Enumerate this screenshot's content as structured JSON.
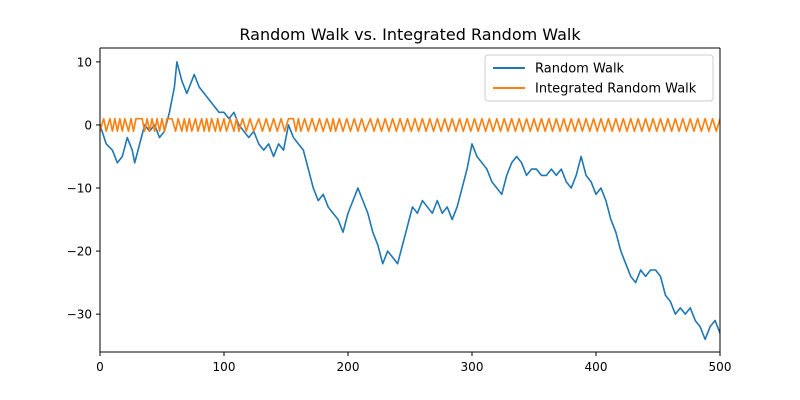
{
  "chart_data": {
    "type": "line",
    "title": "Random Walk vs. Integrated Random Walk",
    "xlabel": "",
    "ylabel": "",
    "xlim": [
      0,
      500
    ],
    "ylim": [
      -36,
      12.2
    ],
    "xticks": [
      0,
      100,
      200,
      300,
      400,
      500
    ],
    "yticks": [
      10,
      0,
      -10,
      -20,
      -30
    ],
    "xtick_labels": [
      "0",
      "100",
      "200",
      "300",
      "400",
      "500"
    ],
    "ytick_labels": [
      "10",
      "0",
      "−10",
      "−20",
      "−30"
    ],
    "grid": false,
    "legend": {
      "position": "top-right"
    },
    "series": [
      {
        "name": "Random Walk",
        "color": "#1f77b4",
        "points": [
          [
            0,
            0
          ],
          [
            5,
            -3
          ],
          [
            10,
            -4
          ],
          [
            14,
            -6
          ],
          [
            18,
            -5
          ],
          [
            22,
            -2
          ],
          [
            26,
            -4
          ],
          [
            28,
            -6
          ],
          [
            32,
            -3
          ],
          [
            36,
            0
          ],
          [
            40,
            -1
          ],
          [
            44,
            0
          ],
          [
            48,
            -2
          ],
          [
            52,
            -1
          ],
          [
            56,
            2
          ],
          [
            60,
            6
          ],
          [
            62,
            10
          ],
          [
            66,
            7
          ],
          [
            70,
            5
          ],
          [
            74,
            7
          ],
          [
            76,
            8
          ],
          [
            80,
            6
          ],
          [
            84,
            5
          ],
          [
            88,
            4
          ],
          [
            92,
            3
          ],
          [
            96,
            2
          ],
          [
            100,
            2
          ],
          [
            104,
            1
          ],
          [
            108,
            2
          ],
          [
            112,
            0
          ],
          [
            116,
            -1
          ],
          [
            120,
            -2
          ],
          [
            124,
            -1
          ],
          [
            128,
            -3
          ],
          [
            132,
            -4
          ],
          [
            136,
            -3
          ],
          [
            140,
            -5
          ],
          [
            144,
            -3
          ],
          [
            148,
            -4
          ],
          [
            152,
            0
          ],
          [
            156,
            -2
          ],
          [
            160,
            -3
          ],
          [
            164,
            -4
          ],
          [
            168,
            -7
          ],
          [
            172,
            -10
          ],
          [
            176,
            -12
          ],
          [
            180,
            -11
          ],
          [
            184,
            -13
          ],
          [
            188,
            -14
          ],
          [
            192,
            -15
          ],
          [
            196,
            -17
          ],
          [
            200,
            -14
          ],
          [
            204,
            -12
          ],
          [
            208,
            -10
          ],
          [
            212,
            -12
          ],
          [
            216,
            -14
          ],
          [
            220,
            -17
          ],
          [
            224,
            -19
          ],
          [
            228,
            -22
          ],
          [
            232,
            -20
          ],
          [
            236,
            -21
          ],
          [
            240,
            -22
          ],
          [
            244,
            -19
          ],
          [
            248,
            -16
          ],
          [
            252,
            -13
          ],
          [
            256,
            -14
          ],
          [
            260,
            -12
          ],
          [
            264,
            -13
          ],
          [
            268,
            -14
          ],
          [
            272,
            -12
          ],
          [
            276,
            -14
          ],
          [
            280,
            -13
          ],
          [
            284,
            -15
          ],
          [
            288,
            -13
          ],
          [
            292,
            -10
          ],
          [
            296,
            -7
          ],
          [
            300,
            -3
          ],
          [
            304,
            -5
          ],
          [
            308,
            -6
          ],
          [
            312,
            -7
          ],
          [
            316,
            -9
          ],
          [
            320,
            -10
          ],
          [
            324,
            -11
          ],
          [
            328,
            -8
          ],
          [
            332,
            -6
          ],
          [
            336,
            -5
          ],
          [
            340,
            -6
          ],
          [
            344,
            -8
          ],
          [
            348,
            -7
          ],
          [
            352,
            -7
          ],
          [
            356,
            -8
          ],
          [
            360,
            -8
          ],
          [
            364,
            -7
          ],
          [
            368,
            -8
          ],
          [
            372,
            -7
          ],
          [
            376,
            -9
          ],
          [
            380,
            -10
          ],
          [
            384,
            -8
          ],
          [
            388,
            -5
          ],
          [
            392,
            -8
          ],
          [
            396,
            -9
          ],
          [
            400,
            -11
          ],
          [
            404,
            -10
          ],
          [
            408,
            -12
          ],
          [
            412,
            -15
          ],
          [
            416,
            -17
          ],
          [
            420,
            -20
          ],
          [
            424,
            -22
          ],
          [
            428,
            -24
          ],
          [
            432,
            -25
          ],
          [
            436,
            -23
          ],
          [
            440,
            -24
          ],
          [
            444,
            -23
          ],
          [
            448,
            -23
          ],
          [
            452,
            -24
          ],
          [
            456,
            -27
          ],
          [
            460,
            -28
          ],
          [
            464,
            -30
          ],
          [
            468,
            -29
          ],
          [
            472,
            -30
          ],
          [
            476,
            -29
          ],
          [
            480,
            -31
          ],
          [
            484,
            -32
          ],
          [
            488,
            -34
          ],
          [
            492,
            -32
          ],
          [
            496,
            -31
          ],
          [
            500,
            -33
          ]
        ]
      },
      {
        "name": "Integrated Random Walk",
        "color": "#ff7f0e",
        "points": [
          [
            0,
            -1
          ],
          [
            3,
            1
          ],
          [
            5,
            -1
          ],
          [
            8,
            1
          ],
          [
            10,
            -1
          ],
          [
            12,
            1
          ],
          [
            14,
            -1
          ],
          [
            16,
            1
          ],
          [
            18,
            -1
          ],
          [
            20,
            1
          ],
          [
            23,
            -1
          ],
          [
            25,
            1
          ],
          [
            27,
            -1
          ],
          [
            29,
            1
          ],
          [
            34,
            1
          ],
          [
            36,
            -1
          ],
          [
            38,
            1
          ],
          [
            40,
            -1
          ],
          [
            42,
            1
          ],
          [
            44,
            -1
          ],
          [
            46,
            1
          ],
          [
            48,
            -1
          ],
          [
            50,
            1
          ],
          [
            52,
            -1
          ],
          [
            54,
            1
          ],
          [
            58,
            1
          ],
          [
            61,
            -1
          ],
          [
            63,
            1
          ],
          [
            66,
            -1
          ],
          [
            68,
            1
          ],
          [
            70,
            -1
          ],
          [
            72,
            1
          ],
          [
            74,
            -1
          ],
          [
            77,
            1
          ],
          [
            79,
            -1
          ],
          [
            82,
            1
          ],
          [
            84,
            -1
          ],
          [
            86,
            1
          ],
          [
            88,
            -1
          ],
          [
            90,
            1
          ],
          [
            93,
            -1
          ],
          [
            95,
            1
          ],
          [
            97,
            -1
          ],
          [
            100,
            1
          ],
          [
            102,
            -1
          ],
          [
            105,
            1
          ],
          [
            108,
            -1
          ],
          [
            110,
            1
          ],
          [
            112,
            -1
          ],
          [
            115,
            1
          ],
          [
            118,
            -1
          ],
          [
            121,
            1
          ],
          [
            124,
            -1
          ],
          [
            128,
            1
          ],
          [
            131,
            -1
          ],
          [
            134,
            1
          ],
          [
            137,
            -1
          ],
          [
            140,
            1
          ],
          [
            143,
            -1
          ],
          [
            146,
            1
          ],
          [
            149,
            -1
          ],
          [
            152,
            1
          ],
          [
            156,
            1
          ],
          [
            158,
            -1
          ],
          [
            160,
            1
          ],
          [
            162,
            -1
          ],
          [
            165,
            1
          ],
          [
            168,
            -1
          ],
          [
            171,
            1
          ],
          [
            174,
            -1
          ],
          [
            177,
            1
          ],
          [
            180,
            -1
          ],
          [
            183,
            1
          ],
          [
            186,
            -1
          ],
          [
            188,
            1
          ],
          [
            190,
            -1
          ],
          [
            193,
            1
          ],
          [
            196,
            -1
          ],
          [
            199,
            1
          ],
          [
            202,
            -1
          ],
          [
            205,
            1
          ],
          [
            208,
            -1
          ],
          [
            211,
            1
          ],
          [
            214,
            -1
          ],
          [
            218,
            1
          ],
          [
            221,
            -1
          ],
          [
            224,
            1
          ],
          [
            227,
            -1
          ],
          [
            230,
            1
          ],
          [
            233,
            -1
          ],
          [
            236,
            1
          ],
          [
            239,
            -1
          ],
          [
            242,
            1
          ],
          [
            245,
            -1
          ],
          [
            248,
            1
          ],
          [
            251,
            -1
          ],
          [
            254,
            1
          ],
          [
            257,
            -1
          ],
          [
            260,
            1
          ],
          [
            263,
            -1
          ],
          [
            266,
            1
          ],
          [
            269,
            -1
          ],
          [
            272,
            1
          ],
          [
            275,
            -1
          ],
          [
            278,
            1
          ],
          [
            281,
            -1
          ],
          [
            284,
            1
          ],
          [
            287,
            -1
          ],
          [
            290,
            1
          ],
          [
            293,
            -1
          ],
          [
            296,
            1
          ],
          [
            299,
            -1
          ],
          [
            302,
            1
          ],
          [
            305,
            -1
          ],
          [
            308,
            1
          ],
          [
            311,
            -1
          ],
          [
            314,
            1
          ],
          [
            317,
            -1
          ],
          [
            320,
            1
          ],
          [
            323,
            -1
          ],
          [
            326,
            1
          ],
          [
            329,
            -1
          ],
          [
            332,
            1
          ],
          [
            335,
            -1
          ],
          [
            338,
            1
          ],
          [
            341,
            -1
          ],
          [
            344,
            1
          ],
          [
            347,
            -1
          ],
          [
            350,
            1
          ],
          [
            353,
            -1
          ],
          [
            356,
            1
          ],
          [
            359,
            -1
          ],
          [
            362,
            1
          ],
          [
            365,
            -1
          ],
          [
            368,
            1
          ],
          [
            371,
            -1
          ],
          [
            374,
            1
          ],
          [
            377,
            -1
          ],
          [
            380,
            1
          ],
          [
            383,
            -1
          ],
          [
            386,
            1
          ],
          [
            389,
            -1
          ],
          [
            392,
            1
          ],
          [
            395,
            -1
          ],
          [
            398,
            1
          ],
          [
            401,
            -1
          ],
          [
            404,
            1
          ],
          [
            407,
            -1
          ],
          [
            410,
            1
          ],
          [
            413,
            -1
          ],
          [
            416,
            1
          ],
          [
            419,
            -1
          ],
          [
            422,
            1
          ],
          [
            425,
            -1
          ],
          [
            428,
            1
          ],
          [
            431,
            -1
          ],
          [
            434,
            1
          ],
          [
            437,
            -1
          ],
          [
            440,
            1
          ],
          [
            443,
            -1
          ],
          [
            446,
            1
          ],
          [
            449,
            -1
          ],
          [
            452,
            1
          ],
          [
            455,
            -1
          ],
          [
            458,
            1
          ],
          [
            461,
            -1
          ],
          [
            464,
            1
          ],
          [
            467,
            -1
          ],
          [
            470,
            1
          ],
          [
            473,
            -1
          ],
          [
            476,
            1
          ],
          [
            479,
            -1
          ],
          [
            482,
            1
          ],
          [
            485,
            -1
          ],
          [
            488,
            1
          ],
          [
            491,
            -1
          ],
          [
            494,
            1
          ],
          [
            497,
            -1
          ],
          [
            500,
            1
          ]
        ]
      }
    ]
  }
}
